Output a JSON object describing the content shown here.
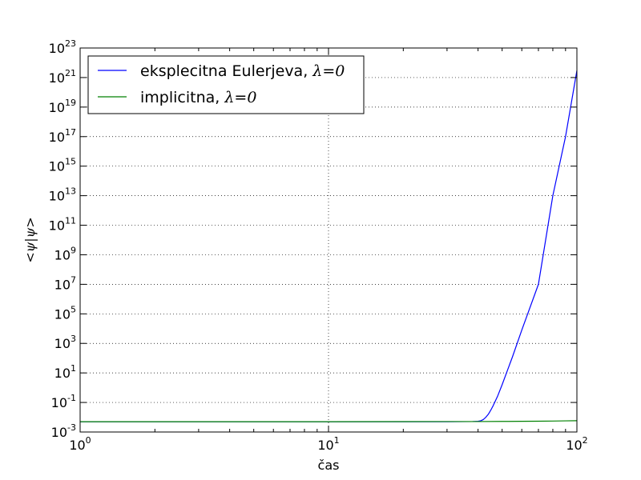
{
  "chart_data": {
    "type": "line",
    "xscale": "log",
    "yscale": "log",
    "xlim": [
      1,
      100
    ],
    "ylim": [
      0.001,
      1e+23
    ],
    "xlabel": "čas",
    "ylabel": "<ψ|ψ>",
    "grid": true,
    "legend_position": "top-left",
    "x_ticks": [
      {
        "value": 1,
        "base": "10",
        "exp": "0"
      },
      {
        "value": 10,
        "base": "10",
        "exp": "1"
      },
      {
        "value": 100,
        "base": "10",
        "exp": "2"
      }
    ],
    "y_ticks": [
      {
        "value": 0.001,
        "base": "10",
        "exp": "-3"
      },
      {
        "value": 0.1,
        "base": "10",
        "exp": "-1"
      },
      {
        "value": 10,
        "base": "10",
        "exp": "1"
      },
      {
        "value": 1000,
        "base": "10",
        "exp": "3"
      },
      {
        "value": 100000.0,
        "base": "10",
        "exp": "5"
      },
      {
        "value": 10000000.0,
        "base": "10",
        "exp": "7"
      },
      {
        "value": 1000000000.0,
        "base": "10",
        "exp": "9"
      },
      {
        "value": 100000000000.0,
        "base": "10",
        "exp": "11"
      },
      {
        "value": 10000000000000.0,
        "base": "10",
        "exp": "13"
      },
      {
        "value": 1000000000000000.0,
        "base": "10",
        "exp": "15"
      },
      {
        "value": 1e+17,
        "base": "10",
        "exp": "17"
      },
      {
        "value": 1e+19,
        "base": "10",
        "exp": "19"
      },
      {
        "value": 1e+21,
        "base": "10",
        "exp": "21"
      },
      {
        "value": 1e+23,
        "base": "10",
        "exp": "23"
      }
    ],
    "series": [
      {
        "name": "eksplecitna Eulerjeva, ",
        "name_math": "λ=0",
        "color": "#0000ff",
        "x": [
          1,
          10,
          30,
          38,
          40,
          41,
          42,
          43,
          44,
          45,
          46,
          48,
          50,
          55,
          60,
          70,
          80,
          90,
          100
        ],
        "y": [
          0.005,
          0.005,
          0.005,
          0.0051,
          0.0053,
          0.0058,
          0.007,
          0.01,
          0.016,
          0.03,
          0.06,
          0.28,
          1.6,
          120,
          8000,
          10000000.0,
          10000000000000.0,
          1e+17,
          3e+21
        ]
      },
      {
        "name": "implicitna, ",
        "name_math": "λ=0",
        "color": "#008000",
        "x": [
          1,
          10,
          30,
          40,
          50,
          60,
          70,
          80,
          90,
          100
        ],
        "y": [
          0.005,
          0.005,
          0.0051,
          0.0051,
          0.0052,
          0.0053,
          0.0054,
          0.0055,
          0.0057,
          0.0058
        ]
      }
    ]
  }
}
